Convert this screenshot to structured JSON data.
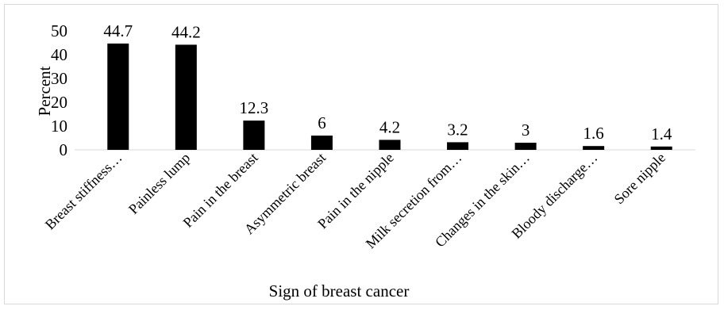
{
  "chart_data": {
    "type": "bar",
    "title": "",
    "xlabel": "Sign of breast cancer",
    "ylabel": "Percent",
    "ylim": [
      0,
      50
    ],
    "yticks": [
      0,
      10,
      20,
      30,
      40,
      50
    ],
    "grid": false,
    "legend": "none",
    "categories": [
      "Breast stiffness…",
      "Painless lump",
      "Pain in the breast",
      "Asymmetric breast",
      "Pain in the nipple",
      "Milk secretion from…",
      "Changes in the skin…",
      "Bloody discharge…",
      "Sore nipple"
    ],
    "values": [
      44.7,
      44.2,
      12.3,
      6,
      4.2,
      3.2,
      3,
      1.6,
      1.4
    ],
    "data_labels": [
      "44.7",
      "44.2",
      "12.3",
      "6",
      "4.2",
      "3.2",
      "3",
      "1.6",
      "1.4"
    ],
    "colors": {
      "bar": "#000000",
      "axis": "#d9d9d9",
      "frame": "#d9d9d9"
    }
  }
}
